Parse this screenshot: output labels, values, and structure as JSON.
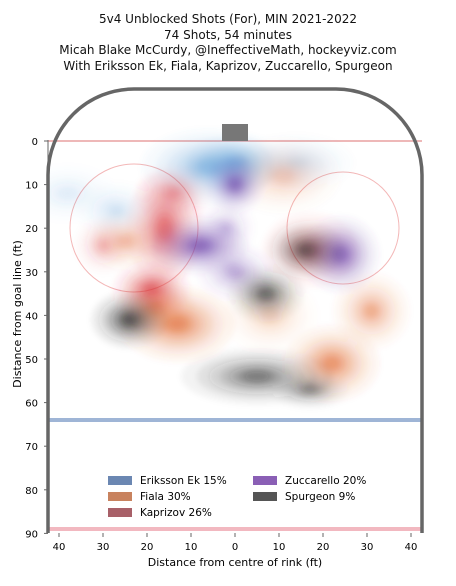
{
  "titles": [
    "5v4 Unblocked Shots (For), MIN 2021-2022",
    "74 Shots, 54 minutes",
    "Micah Blake McCurdy, @IneffectiveMath, hockeyviz.com",
    "With Eriksson Ek, Fiala, Kaprizov, Zuccarello, Spurgeon"
  ],
  "colors": {
    "rink_outline": "#666666",
    "goal_line": "#e8a0a0",
    "blue_line": "#9fb5d6",
    "center_line": "#f2b8c0",
    "circles": "#f3b7b7"
  },
  "chart_data": {
    "type": "heatmap",
    "xlabel": "Distance from centre of rink (ft)",
    "ylabel": "Distance from goal line (ft)",
    "xlim": [
      -42,
      42
    ],
    "ylim": [
      0,
      90
    ],
    "x_ticks": [
      "40",
      "30",
      "20",
      "10",
      "0",
      "10",
      "20",
      "30",
      "40"
    ],
    "x_tick_values": [
      -40,
      -30,
      -20,
      -10,
      0,
      10,
      20,
      30,
      40
    ],
    "y_ticks": [
      0,
      10,
      20,
      30,
      40,
      50,
      60,
      70,
      80,
      90
    ],
    "legend": [
      {
        "name": "Eriksson Ek 15%",
        "color": "#6b87b2"
      },
      {
        "name": "Fiala 30%",
        "color": "#c8825e"
      },
      {
        "name": "Kaprizov 26%",
        "color": "#a86068"
      },
      {
        "name": "Zuccarello 20%",
        "color": "#8a5fb5"
      },
      {
        "name": "Spurgeon 9%",
        "color": "#555555"
      }
    ],
    "series": [
      {
        "player": "Eriksson Ek",
        "color": "#5b9bd5",
        "hotspots": [
          {
            "x": -6,
            "y": 6,
            "rx": 7,
            "ry": 4,
            "w": 0.7
          },
          {
            "x": 0,
            "y": 5,
            "rx": 5,
            "ry": 3,
            "w": 0.8
          },
          {
            "x": -27,
            "y": 16,
            "rx": 4,
            "ry": 3,
            "w": 0.25
          },
          {
            "x": -38,
            "y": 12,
            "rx": 5,
            "ry": 3,
            "w": 0.15
          },
          {
            "x": 14,
            "y": 5,
            "rx": 6,
            "ry": 3,
            "w": 0.25
          }
        ]
      },
      {
        "player": "Fiala",
        "color": "#e0642a",
        "hotspots": [
          {
            "x": -13,
            "y": 42,
            "rx": 6,
            "ry": 4,
            "w": 0.9
          },
          {
            "x": -18,
            "y": 38,
            "rx": 4,
            "ry": 3,
            "w": 0.6
          },
          {
            "x": 22,
            "y": 51,
            "rx": 5,
            "ry": 4,
            "w": 0.8
          },
          {
            "x": 31,
            "y": 39,
            "rx": 4,
            "ry": 4,
            "w": 0.55
          },
          {
            "x": -25,
            "y": 23,
            "rx": 4,
            "ry": 3,
            "w": 0.4
          },
          {
            "x": 11,
            "y": 8,
            "rx": 6,
            "ry": 4,
            "w": 0.3
          },
          {
            "x": 8,
            "y": 40,
            "rx": 5,
            "ry": 4,
            "w": 0.25
          }
        ]
      },
      {
        "player": "Kaprizov",
        "color": "#d8343a",
        "hotspots": [
          {
            "x": -19,
            "y": 34,
            "rx": 4,
            "ry": 3,
            "w": 0.9
          },
          {
            "x": -16,
            "y": 20,
            "rx": 4,
            "ry": 6,
            "w": 0.85
          },
          {
            "x": -14,
            "y": 12,
            "rx": 4,
            "ry": 3,
            "w": 0.4
          },
          {
            "x": 17,
            "y": 25,
            "rx": 5,
            "ry": 4,
            "w": 0.5
          },
          {
            "x": -30,
            "y": 24,
            "rx": 3,
            "ry": 3,
            "w": 0.3
          }
        ]
      },
      {
        "player": "Zuccarello",
        "color": "#6a3fa8",
        "hotspots": [
          {
            "x": -8,
            "y": 24,
            "rx": 5,
            "ry": 3,
            "w": 1.0
          },
          {
            "x": 0,
            "y": 10,
            "rx": 3,
            "ry": 3,
            "w": 0.9
          },
          {
            "x": 24,
            "y": 26,
            "rx": 4,
            "ry": 4,
            "w": 0.95
          },
          {
            "x": 0,
            "y": 30,
            "rx": 4,
            "ry": 3,
            "w": 0.45
          },
          {
            "x": -2,
            "y": 20,
            "rx": 3,
            "ry": 3,
            "w": 0.3
          }
        ]
      },
      {
        "player": "Spurgeon",
        "color": "#2a2a2a",
        "hotspots": [
          {
            "x": -24,
            "y": 41,
            "rx": 4,
            "ry": 3,
            "w": 1.0
          },
          {
            "x": 7,
            "y": 35,
            "rx": 4,
            "ry": 3,
            "w": 0.8
          },
          {
            "x": 16,
            "y": 25,
            "rx": 4,
            "ry": 3,
            "w": 0.75
          },
          {
            "x": 5,
            "y": 54,
            "rx": 8,
            "ry": 3,
            "w": 0.7
          },
          {
            "x": 17,
            "y": 57,
            "rx": 4,
            "ry": 2,
            "w": 0.55
          }
        ]
      }
    ]
  }
}
